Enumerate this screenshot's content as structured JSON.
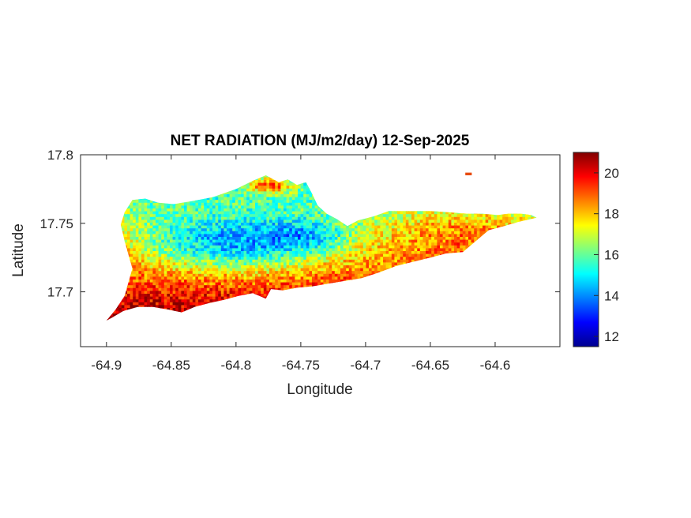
{
  "figure": {
    "title": "NET RADIATION (MJ/m2/day) 12-Sep-2025",
    "xlabel": "Longitude",
    "ylabel": "Latitude"
  },
  "chart_data": {
    "type": "heatmap",
    "title": "NET RADIATION (MJ/m2/day) 12-Sep-2025",
    "xlabel": "Longitude",
    "ylabel": "Latitude",
    "xlim": [
      -64.92,
      -64.55
    ],
    "ylim": [
      17.66,
      17.8
    ],
    "x_ticks": [
      "-64.9",
      "-64.85",
      "-64.8",
      "-64.75",
      "-64.7",
      "-64.65",
      "-64.6"
    ],
    "x_tick_values": [
      -64.9,
      -64.85,
      -64.8,
      -64.75,
      -64.7,
      -64.65,
      -64.6
    ],
    "y_ticks": [
      "17.8",
      "17.75",
      "17.7"
    ],
    "y_tick_values": [
      17.8,
      17.75,
      17.7
    ],
    "colormap": "jet",
    "colorbar": {
      "range": [
        11.5,
        21
      ],
      "ticks": [
        "12",
        "14",
        "16",
        "18",
        "20"
      ],
      "tick_values": [
        12,
        14,
        16,
        18,
        20
      ]
    },
    "grid": false,
    "outline": [
      [
        -64.9,
        17.679
      ],
      [
        -64.893,
        17.687
      ],
      [
        -64.886,
        17.697
      ],
      [
        -64.883,
        17.707
      ],
      [
        -64.88,
        17.717
      ],
      [
        -64.883,
        17.727
      ],
      [
        -64.886,
        17.737
      ],
      [
        -64.889,
        17.749
      ],
      [
        -64.886,
        17.758
      ],
      [
        -64.88,
        17.767
      ],
      [
        -64.87,
        17.768
      ],
      [
        -64.86,
        17.765
      ],
      [
        -64.848,
        17.764
      ],
      [
        -64.835,
        17.766
      ],
      [
        -64.818,
        17.769
      ],
      [
        -64.8,
        17.775
      ],
      [
        -64.787,
        17.781
      ],
      [
        -64.777,
        17.785
      ],
      [
        -64.767,
        17.78
      ],
      [
        -64.76,
        17.782
      ],
      [
        -64.753,
        17.778
      ],
      [
        -64.746,
        17.78
      ],
      [
        -64.741,
        17.771
      ],
      [
        -64.737,
        17.763
      ],
      [
        -64.73,
        17.757
      ],
      [
        -64.722,
        17.753
      ],
      [
        -64.714,
        17.748
      ],
      [
        -64.706,
        17.752
      ],
      [
        -64.694,
        17.755
      ],
      [
        -64.682,
        17.759
      ],
      [
        -64.667,
        17.759
      ],
      [
        -64.65,
        17.759
      ],
      [
        -64.635,
        17.758
      ],
      [
        -64.622,
        17.757
      ],
      [
        -64.61,
        17.757
      ],
      [
        -64.598,
        17.756
      ],
      [
        -64.59,
        17.757
      ],
      [
        -64.58,
        17.757
      ],
      [
        -64.572,
        17.756
      ],
      [
        -64.568,
        17.754
      ],
      [
        -64.582,
        17.751
      ],
      [
        -64.593,
        17.748
      ],
      [
        -64.605,
        17.745
      ],
      [
        -64.615,
        17.737
      ],
      [
        -64.625,
        17.729
      ],
      [
        -64.638,
        17.728
      ],
      [
        -64.65,
        17.725
      ],
      [
        -64.663,
        17.722
      ],
      [
        -64.676,
        17.719
      ],
      [
        -64.69,
        17.714
      ],
      [
        -64.703,
        17.71
      ],
      [
        -64.716,
        17.708
      ],
      [
        -64.729,
        17.706
      ],
      [
        -64.741,
        17.704
      ],
      [
        -64.753,
        17.703
      ],
      [
        -64.764,
        17.701
      ],
      [
        -64.773,
        17.702
      ],
      [
        -64.777,
        17.695
      ],
      [
        -64.787,
        17.699
      ],
      [
        -64.798,
        17.697
      ],
      [
        -64.81,
        17.694
      ],
      [
        -64.82,
        17.692
      ],
      [
        -64.832,
        17.689
      ],
      [
        -64.842,
        17.685
      ],
      [
        -64.852,
        17.687
      ],
      [
        -64.864,
        17.689
      ],
      [
        -64.876,
        17.689
      ],
      [
        -64.887,
        17.686
      ],
      [
        -64.896,
        17.681
      ]
    ],
    "islet": [
      [
        -64.623,
        17.787
      ],
      [
        -64.618,
        17.787
      ],
      [
        -64.618,
        17.785
      ],
      [
        -64.623,
        17.785
      ]
    ],
    "value_regions": [
      {
        "region": "north-central interior",
        "range": [
          12,
          15
        ]
      },
      {
        "region": "west end",
        "range": [
          14,
          17
        ]
      },
      {
        "region": "south coast and east end",
        "range": [
          17,
          21
        ]
      },
      {
        "region": "north coast near -64.78",
        "range": [
          19,
          21
        ]
      }
    ]
  }
}
